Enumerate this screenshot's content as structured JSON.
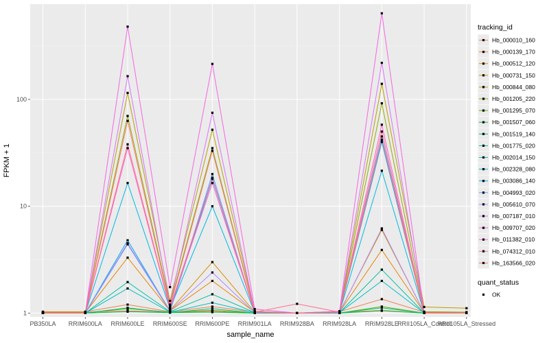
{
  "chart_data": {
    "type": "line",
    "xlabel": "sample_name",
    "ylabel": "FPKM + 1",
    "y_scale": "log10",
    "ylim": [
      0.92,
      780
    ],
    "y_ticks": [
      1,
      10,
      100
    ],
    "y_tick_labels": [
      "1",
      "10",
      "100"
    ],
    "grid": true,
    "legend_position": "right",
    "categories": [
      "PB350LA",
      "RRIM600LA",
      "RRIM600LE",
      "RRIM600SE",
      "RRIM600PE",
      "RRIM901LA",
      "RRIM928BA",
      "RRIM928LA",
      "RRIM928LE",
      "RRII105LA_Control",
      "RRII105LA_Stressed"
    ],
    "series_legend_title": "tracking_id",
    "series": [
      {
        "name": "Hb_000010_160",
        "color": "#F8766D",
        "values": [
          1.02,
          1.02,
          1.05,
          1.02,
          1.04,
          1.0,
          1.0,
          1.01,
          1.06,
          1.0,
          1.0
        ]
      },
      {
        "name": "Hb_000139_170",
        "color": "#F07F4E",
        "values": [
          1.03,
          1.03,
          1.2,
          1.03,
          1.15,
          1.02,
          1.0,
          1.03,
          1.35,
          1.02,
          1.02
        ]
      },
      {
        "name": "Hb_000512_120",
        "color": "#E58700",
        "values": [
          1.02,
          1.01,
          3.3,
          1.05,
          2.0,
          1.02,
          1.0,
          1.02,
          3.9,
          1.01,
          1.0
        ]
      },
      {
        "name": "Hb_000731_150",
        "color": "#D39200",
        "values": [
          1.01,
          1.01,
          4.5,
          1.06,
          3.0,
          1.02,
          1.0,
          1.02,
          6.0,
          1.01,
          1.0
        ]
      },
      {
        "name": "Hb_000844_080",
        "color": "#B79F00",
        "values": [
          1.02,
          1.02,
          115,
          1.3,
          52,
          1.04,
          1.0,
          1.04,
          140,
          1.14,
          1.11
        ]
      },
      {
        "name": "Hb_001205_220",
        "color": "#93AA00",
        "values": [
          1.01,
          1.01,
          70,
          1.2,
          35,
          1.03,
          1.0,
          1.03,
          92,
          1.03,
          1.02
        ]
      },
      {
        "name": "Hb_001295_070",
        "color": "#5EB300",
        "values": [
          1.0,
          1.0,
          1.1,
          1.02,
          1.06,
          1.0,
          1.0,
          1.0,
          1.15,
          1.0,
          1.0
        ]
      },
      {
        "name": "Hb_001507_060",
        "color": "#00BA38",
        "values": [
          1.0,
          1.0,
          1.03,
          1.01,
          1.02,
          1.0,
          1.0,
          1.0,
          1.05,
          1.0,
          1.0
        ]
      },
      {
        "name": "Hb_001519_140",
        "color": "#00BF74",
        "values": [
          1.0,
          1.0,
          1.12,
          1.01,
          1.1,
          1.0,
          1.0,
          1.0,
          1.12,
          1.0,
          1.0
        ]
      },
      {
        "name": "Hb_001775_020",
        "color": "#00C19F",
        "values": [
          1.0,
          1.0,
          1.95,
          1.03,
          1.5,
          1.01,
          1.0,
          1.01,
          2.55,
          1.0,
          1.0
        ]
      },
      {
        "name": "Hb_002014_150",
        "color": "#00BFC4",
        "values": [
          1.0,
          1.0,
          1.7,
          1.02,
          1.25,
          1.01,
          1.0,
          1.01,
          2.0,
          1.0,
          1.0
        ]
      },
      {
        "name": "Hb_002328_080",
        "color": "#00B9E3",
        "values": [
          1.0,
          1.0,
          16.5,
          1.1,
          10,
          1.01,
          1.0,
          1.01,
          21.5,
          1.0,
          1.0
        ]
      },
      {
        "name": "Hb_003086_140",
        "color": "#00ADFA",
        "values": [
          1.0,
          1.0,
          4.8,
          1.04,
          18,
          1.01,
          1.0,
          1.01,
          40,
          1.0,
          1.0
        ]
      },
      {
        "name": "Hb_004993_020",
        "color": "#619CFF",
        "values": [
          1.0,
          1.0,
          4.4,
          1.04,
          20,
          1.01,
          1.0,
          1.01,
          45,
          1.0,
          1.0
        ]
      },
      {
        "name": "Hb_005610_070",
        "color": "#AE87FF",
        "values": [
          1.0,
          1.0,
          4.5,
          1.05,
          2.4,
          1.01,
          1.0,
          1.01,
          6.2,
          1.0,
          1.0
        ]
      },
      {
        "name": "Hb_007187_010",
        "color": "#DB72FB",
        "values": [
          1.0,
          1.0,
          165,
          1.2,
          75,
          1.03,
          1.0,
          1.03,
          220,
          1.0,
          1.0
        ]
      },
      {
        "name": "Hb_009707_020",
        "color": "#F564E3",
        "values": [
          1.0,
          1.0,
          480,
          1.75,
          215,
          1.09,
          1.0,
          1.04,
          640,
          1.0,
          1.0
        ]
      },
      {
        "name": "Hb_011382_010",
        "color": "#FF61C3",
        "values": [
          1.0,
          1.0,
          35,
          1.1,
          16.5,
          1.02,
          1.0,
          1.02,
          58,
          1.0,
          1.0
        ]
      },
      {
        "name": "Hb_074312_010",
        "color": "#FF6C91",
        "values": [
          1.0,
          1.0,
          38,
          1.12,
          18.5,
          1.02,
          1.22,
          1.02,
          50,
          1.0,
          1.0
        ]
      },
      {
        "name": "Hb_163566_020",
        "color": "#F8766D",
        "values": [
          1.0,
          1.0,
          63,
          1.15,
          33,
          1.02,
          1.0,
          1.02,
          42,
          1.0,
          1.0
        ]
      }
    ],
    "shape_legend_title": "quant_status",
    "shape_legend_items": [
      {
        "label": "OK",
        "shape": "square",
        "color": "#000000"
      }
    ],
    "colors": {
      "panel": "#EBEBEB",
      "grid_major": "#FFFFFF",
      "point": "#000000",
      "tick_text": "#4D4D4D"
    }
  }
}
